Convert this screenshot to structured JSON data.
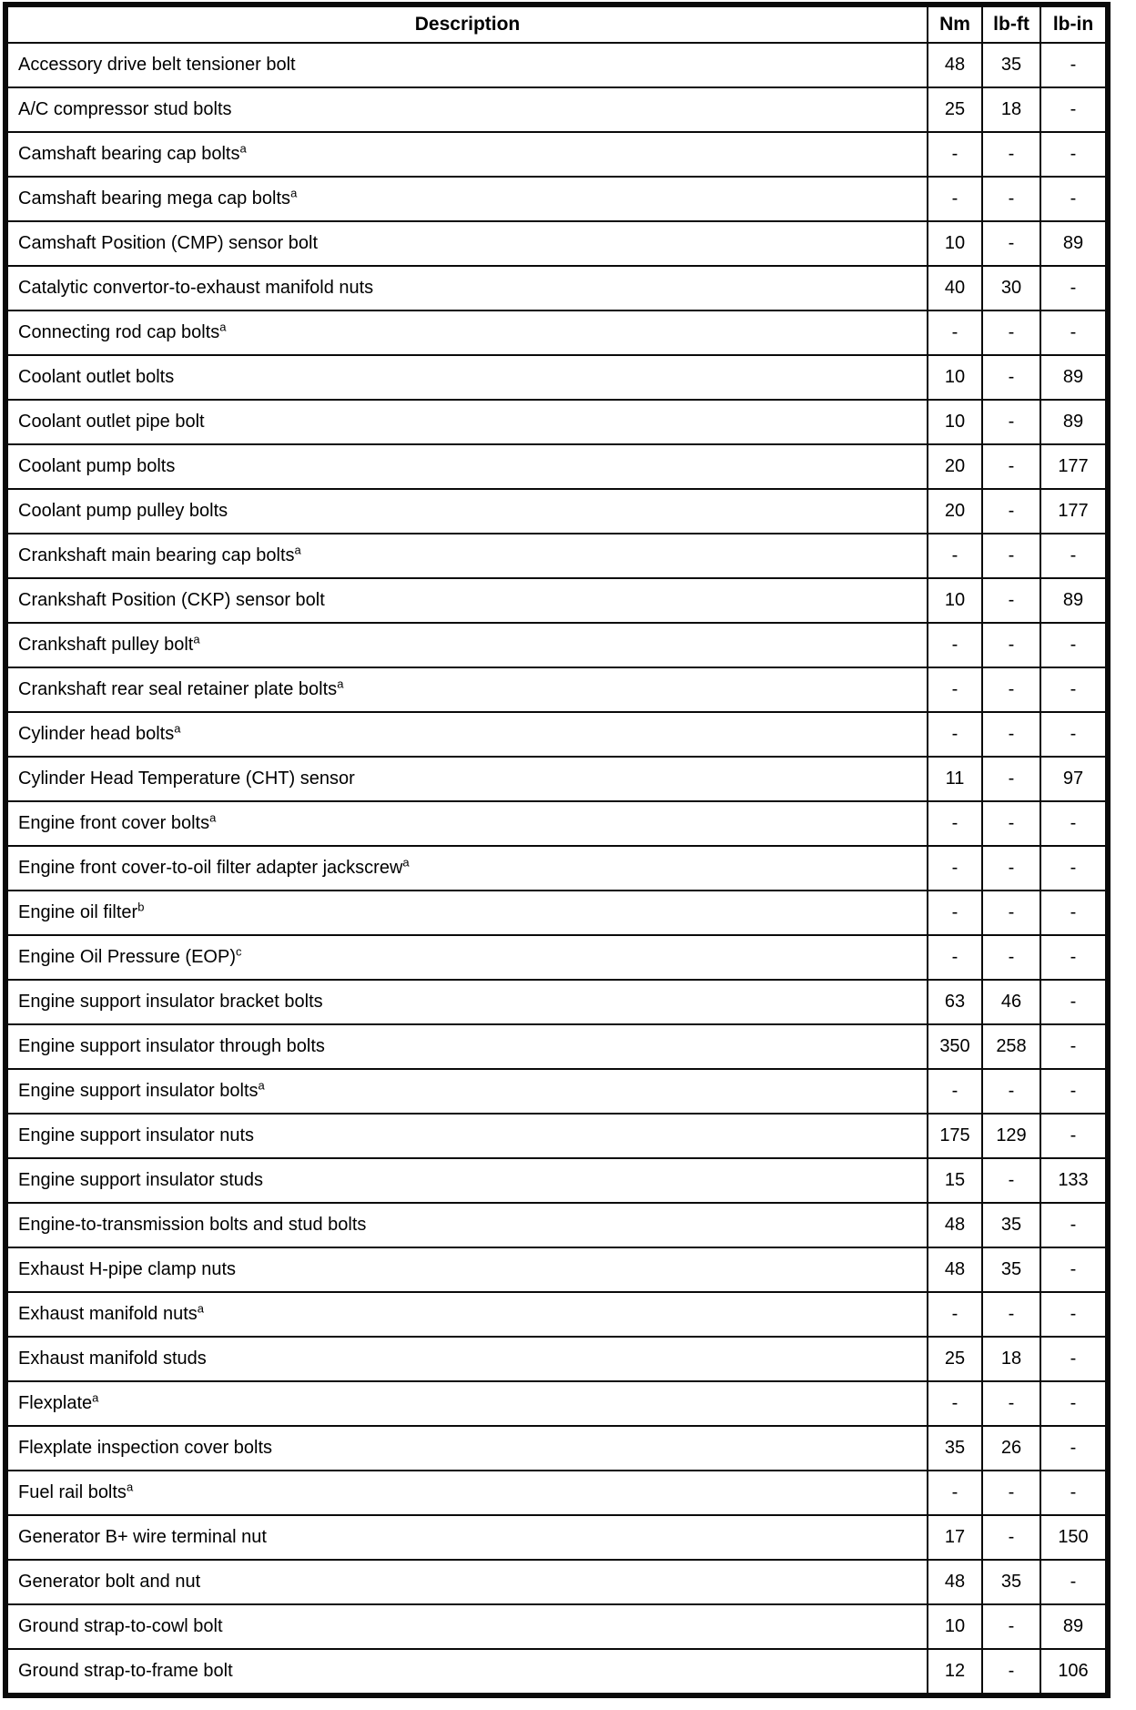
{
  "table": {
    "headers": [
      "Description",
      "Nm",
      "lb-ft",
      "lb-in"
    ],
    "rows": [
      {
        "desc": "Accessory drive belt tensioner bolt",
        "sup": "",
        "nm": "48",
        "lbft": "35",
        "lbin": "-"
      },
      {
        "desc": "A/C compressor stud bolts",
        "sup": "",
        "nm": "25",
        "lbft": "18",
        "lbin": "-"
      },
      {
        "desc": "Camshaft bearing cap bolts",
        "sup": "a",
        "nm": "-",
        "lbft": "-",
        "lbin": "-"
      },
      {
        "desc": "Camshaft bearing mega cap bolts",
        "sup": "a",
        "nm": "-",
        "lbft": "-",
        "lbin": "-"
      },
      {
        "desc": "Camshaft Position (CMP) sensor bolt",
        "sup": "",
        "nm": "10",
        "lbft": "-",
        "lbin": "89"
      },
      {
        "desc": "Catalytic convertor-to-exhaust manifold nuts",
        "sup": "",
        "nm": "40",
        "lbft": "30",
        "lbin": "-"
      },
      {
        "desc": "Connecting rod cap bolts",
        "sup": "a",
        "nm": "-",
        "lbft": "-",
        "lbin": "-"
      },
      {
        "desc": "Coolant outlet bolts",
        "sup": "",
        "nm": "10",
        "lbft": "-",
        "lbin": "89"
      },
      {
        "desc": "Coolant outlet pipe bolt",
        "sup": "",
        "nm": "10",
        "lbft": "-",
        "lbin": "89"
      },
      {
        "desc": "Coolant pump bolts",
        "sup": "",
        "nm": "20",
        "lbft": "-",
        "lbin": "177"
      },
      {
        "desc": "Coolant pump pulley bolts",
        "sup": "",
        "nm": "20",
        "lbft": "-",
        "lbin": "177"
      },
      {
        "desc": "Crankshaft main bearing cap bolts",
        "sup": "a",
        "nm": "-",
        "lbft": "-",
        "lbin": "-"
      },
      {
        "desc": "Crankshaft Position (CKP) sensor bolt",
        "sup": "",
        "nm": "10",
        "lbft": "-",
        "lbin": "89"
      },
      {
        "desc": "Crankshaft pulley bolt",
        "sup": "a",
        "nm": "-",
        "lbft": "-",
        "lbin": "-"
      },
      {
        "desc": "Crankshaft rear seal retainer plate bolts",
        "sup": "a",
        "nm": "-",
        "lbft": "-",
        "lbin": "-"
      },
      {
        "desc": "Cylinder head bolts",
        "sup": "a",
        "nm": "-",
        "lbft": "-",
        "lbin": "-"
      },
      {
        "desc": "Cylinder Head Temperature (CHT) sensor",
        "sup": "",
        "nm": "11",
        "lbft": "-",
        "lbin": "97"
      },
      {
        "desc": "Engine front cover bolts",
        "sup": "a",
        "nm": "-",
        "lbft": "-",
        "lbin": "-"
      },
      {
        "desc": "Engine front cover-to-oil filter adapter jackscrew",
        "sup": "a",
        "nm": "-",
        "lbft": "-",
        "lbin": "-"
      },
      {
        "desc": "Engine oil filter",
        "sup": "b",
        "nm": "-",
        "lbft": "-",
        "lbin": "-"
      },
      {
        "desc": "Engine Oil Pressure (EOP)",
        "sup": "c",
        "nm": "-",
        "lbft": "-",
        "lbin": "-"
      },
      {
        "desc": "Engine support insulator bracket bolts",
        "sup": "",
        "nm": "63",
        "lbft": "46",
        "lbin": "-"
      },
      {
        "desc": "Engine support insulator through bolts",
        "sup": "",
        "nm": "350",
        "lbft": "258",
        "lbin": "-"
      },
      {
        "desc": "Engine support insulator bolts",
        "sup": "a",
        "nm": "-",
        "lbft": "-",
        "lbin": "-"
      },
      {
        "desc": "Engine support insulator nuts",
        "sup": "",
        "nm": "175",
        "lbft": "129",
        "lbin": "-"
      },
      {
        "desc": "Engine support insulator studs",
        "sup": "",
        "nm": "15",
        "lbft": "-",
        "lbin": "133"
      },
      {
        "desc": "Engine-to-transmission bolts and stud bolts",
        "sup": "",
        "nm": "48",
        "lbft": "35",
        "lbin": "-"
      },
      {
        "desc": "Exhaust H-pipe clamp nuts",
        "sup": "",
        "nm": "48",
        "lbft": "35",
        "lbin": "-"
      },
      {
        "desc": "Exhaust manifold nuts",
        "sup": "a",
        "nm": "-",
        "lbft": "-",
        "lbin": "-"
      },
      {
        "desc": "Exhaust manifold studs",
        "sup": "",
        "nm": "25",
        "lbft": "18",
        "lbin": "-"
      },
      {
        "desc": "Flexplate",
        "sup": "a",
        "nm": "-",
        "lbft": "-",
        "lbin": "-"
      },
      {
        "desc": "Flexplate inspection cover bolts",
        "sup": "",
        "nm": "35",
        "lbft": "26",
        "lbin": "-"
      },
      {
        "desc": "Fuel rail bolts",
        "sup": "a",
        "nm": "-",
        "lbft": "-",
        "lbin": "-"
      },
      {
        "desc": "Generator B+ wire terminal nut",
        "sup": "",
        "nm": "17",
        "lbft": "-",
        "lbin": "150"
      },
      {
        "desc": "Generator bolt and nut",
        "sup": "",
        "nm": "48",
        "lbft": "35",
        "lbin": "-"
      },
      {
        "desc": "Ground strap-to-cowl bolt",
        "sup": "",
        "nm": "10",
        "lbft": "-",
        "lbin": "89"
      },
      {
        "desc": "Ground strap-to-frame bolt",
        "sup": "",
        "nm": "12",
        "lbft": "-",
        "lbin": "106"
      }
    ]
  }
}
